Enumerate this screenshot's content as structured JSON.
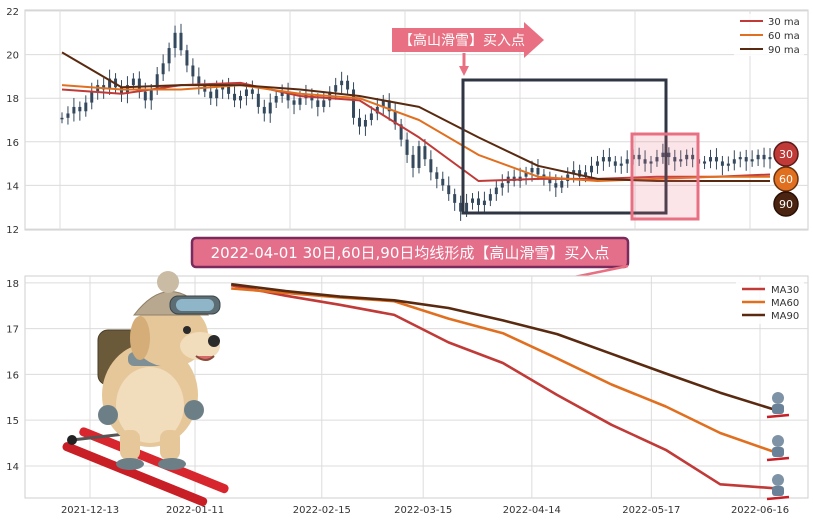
{
  "colors": {
    "ma30": "#c03a37",
    "ma60": "#e07020",
    "ma90": "#5a2a10",
    "candle": "#34495e",
    "grid": "#dcdcdc",
    "box_dark": "#2f3542",
    "box_pink": "#e87082",
    "arrow_pink": "#e87082",
    "banner_bg": "#e46f8b",
    "banner_border": "#7a2a5c"
  },
  "chart_data": [
    {
      "type": "line",
      "panel": "top",
      "y_ticks": [
        "12",
        "14",
        "16",
        "18",
        "20",
        "22"
      ],
      "ylim": [
        12,
        22
      ],
      "legend": [
        "30 ma",
        "60 ma",
        "90 ma"
      ],
      "legend_placement": "top-right",
      "grid": true,
      "annotation_arrow": "【高山滑雪】买入点",
      "badges": [
        "30",
        "60",
        "90"
      ],
      "price_series_t": [
        0,
        3,
        6,
        9,
        12,
        15,
        18,
        21,
        24,
        27,
        30,
        33,
        36,
        39,
        42,
        45,
        48,
        51,
        54,
        57,
        60,
        63,
        66,
        69,
        72,
        75,
        78,
        81,
        84,
        87,
        90,
        93,
        96,
        99,
        102,
        105,
        108,
        111,
        114,
        117,
        120,
        123,
        126,
        129,
        132,
        135,
        138,
        141,
        144,
        147,
        150,
        153,
        156,
        159,
        162,
        165,
        168,
        171,
        174,
        177,
        180,
        183,
        186,
        189,
        192,
        195,
        198,
        201,
        204,
        207,
        210,
        213,
        216,
        219,
        222,
        225,
        228,
        231,
        234,
        237,
        240,
        243,
        246,
        249,
        252,
        255,
        258,
        261,
        264,
        267,
        270,
        273,
        276,
        279,
        282,
        285,
        288,
        291,
        294,
        297,
        300,
        303,
        306,
        309,
        312,
        315,
        318,
        321,
        324,
        327,
        330,
        333,
        336,
        339,
        342,
        345,
        348,
        351,
        354,
        357
      ],
      "price_series": [
        17.1,
        17.3,
        17.6,
        17.4,
        17.8,
        18.3,
        18.6,
        18.4,
        18.9,
        18.5,
        18.2,
        18.6,
        18.9,
        18.3,
        17.9,
        18.4,
        19.1,
        19.6,
        20.3,
        21.0,
        20.2,
        19.5,
        19.0,
        18.6,
        18.3,
        18.0,
        18.4,
        18.6,
        18.2,
        17.9,
        18.1,
        18.4,
        18.2,
        17.6,
        17.3,
        17.8,
        18.1,
        18.3,
        17.9,
        17.7,
        18.0,
        18.2,
        17.9,
        17.6,
        17.9,
        18.3,
        18.6,
        18.8,
        18.4,
        17.1,
        16.7,
        17.0,
        17.3,
        17.6,
        17.9,
        17.4,
        16.8,
        16.1,
        15.4,
        14.8,
        15.8,
        15.2,
        14.6,
        14.3,
        14.0,
        13.6,
        13.2,
        12.8,
        13.2,
        13.4,
        13.1,
        13.3,
        13.6,
        13.9,
        14.1,
        14.4,
        14.2,
        14.4,
        14.6,
        14.8,
        14.5,
        14.3,
        14.1,
        13.9,
        14.2,
        14.5,
        14.7,
        14.4,
        14.6,
        14.9,
        15.1,
        15.3,
        15.1,
        14.9,
        15.0,
        15.2,
        15.4,
        15.2,
        15.0,
        15.1,
        15.3,
        15.5,
        15.3,
        15.1,
        15.2,
        15.4,
        15.2,
        15.0,
        15.1,
        15.3,
        15.1,
        14.9,
        15.0,
        15.2,
        15.3,
        15.1,
        15.2,
        15.4,
        15.2,
        15.3
      ],
      "series": [
        {
          "name": "30 ma",
          "t": [
            0,
            30,
            60,
            90,
            120,
            150,
            180,
            210,
            240,
            270,
            300,
            330,
            357
          ],
          "values": [
            18.4,
            18.2,
            18.6,
            18.7,
            18.1,
            17.9,
            16.2,
            14.2,
            14.3,
            14.3,
            14.4,
            14.4,
            14.5
          ]
        },
        {
          "name": "60 ma",
          "t": [
            0,
            30,
            60,
            90,
            120,
            150,
            180,
            210,
            240,
            270,
            300,
            330,
            357
          ],
          "values": [
            18.6,
            18.4,
            18.4,
            18.6,
            18.2,
            18.0,
            17.0,
            15.4,
            14.4,
            14.2,
            14.3,
            14.4,
            14.4
          ]
        },
        {
          "name": "90 ma",
          "t": [
            0,
            30,
            60,
            90,
            120,
            150,
            180,
            210,
            240,
            270,
            300,
            330,
            357
          ],
          "values": [
            20.1,
            18.5,
            18.6,
            18.6,
            18.4,
            18.1,
            17.6,
            16.2,
            14.9,
            14.3,
            14.2,
            14.2,
            14.2
          ]
        }
      ]
    },
    {
      "type": "line",
      "panel": "bottom",
      "x_ticks": [
        "2021-12-13",
        "2022-01-11",
        "2022-02-15",
        "2022-03-15",
        "2022-04-14",
        "2022-05-17",
        "2022-06-16"
      ],
      "y_ticks": [
        "14",
        "15",
        "16",
        "17",
        "18"
      ],
      "ylim": [
        13.3,
        18.15
      ],
      "legend": [
        "MA30",
        "MA60",
        "MA90"
      ],
      "legend_placement": "top-right",
      "grid": true,
      "banner": "2022-04-01 30日,60日,90日均线形成【高山滑雪】买入点",
      "series": [
        {
          "name": "MA30",
          "x": [
            "2022-01-21",
            "2022-02-05",
            "2022-02-20",
            "2022-03-07",
            "2022-03-22",
            "2022-04-06",
            "2022-04-21",
            "2022-05-06",
            "2022-05-21",
            "2022-06-05",
            "2022-06-22"
          ],
          "values": [
            17.95,
            17.72,
            17.52,
            17.3,
            16.7,
            16.25,
            15.55,
            14.9,
            14.35,
            13.6,
            13.5
          ]
        },
        {
          "name": "MA60",
          "x": [
            "2022-01-21",
            "2022-02-05",
            "2022-02-20",
            "2022-03-07",
            "2022-03-22",
            "2022-04-06",
            "2022-04-21",
            "2022-05-06",
            "2022-05-21",
            "2022-06-05",
            "2022-06-22"
          ],
          "values": [
            17.88,
            17.78,
            17.68,
            17.6,
            17.22,
            16.9,
            16.35,
            15.78,
            15.3,
            14.72,
            14.25
          ]
        },
        {
          "name": "MA90",
          "x": [
            "2022-01-21",
            "2022-02-05",
            "2022-02-20",
            "2022-03-07",
            "2022-03-22",
            "2022-04-06",
            "2022-04-21",
            "2022-05-06",
            "2022-05-21",
            "2022-06-05",
            "2022-06-22"
          ],
          "values": [
            17.97,
            17.82,
            17.7,
            17.62,
            17.45,
            17.18,
            16.88,
            16.45,
            16.02,
            15.6,
            15.18
          ]
        }
      ]
    }
  ]
}
